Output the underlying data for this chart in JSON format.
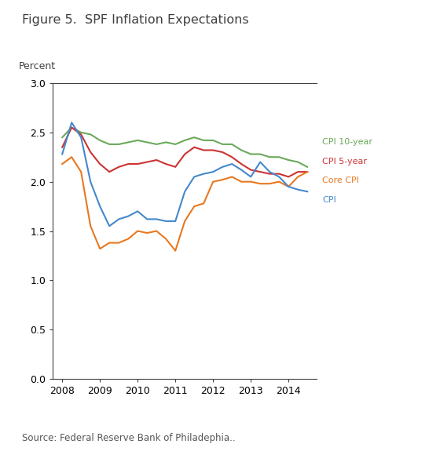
{
  "title": "Figure 5.  SPF Inflation Expectations",
  "ylabel": "Percent",
  "source_text": "Source: Federal Reserve Bank of Philadephia..",
  "xlim": [
    2007.75,
    2014.75
  ],
  "ylim": [
    0.0,
    3.0
  ],
  "yticks": [
    0.0,
    0.5,
    1.0,
    1.5,
    2.0,
    2.5,
    3.0
  ],
  "xticks": [
    2008,
    2009,
    2010,
    2011,
    2012,
    2013,
    2014
  ],
  "background_color": "#ffffff",
  "x": [
    2008.0,
    2008.25,
    2008.5,
    2008.75,
    2009.0,
    2009.25,
    2009.5,
    2009.75,
    2010.0,
    2010.25,
    2010.5,
    2010.75,
    2011.0,
    2011.25,
    2011.5,
    2011.75,
    2012.0,
    2012.25,
    2012.5,
    2012.75,
    2013.0,
    2013.25,
    2013.5,
    2013.75,
    2014.0,
    2014.25,
    2014.5
  ],
  "cpi_10year": [
    2.45,
    2.55,
    2.5,
    2.48,
    2.42,
    2.38,
    2.38,
    2.4,
    2.42,
    2.4,
    2.38,
    2.4,
    2.38,
    2.42,
    2.45,
    2.42,
    2.42,
    2.38,
    2.38,
    2.32,
    2.28,
    2.28,
    2.25,
    2.25,
    2.22,
    2.2,
    2.15
  ],
  "cpi_5year": [
    2.35,
    2.55,
    2.48,
    2.3,
    2.18,
    2.1,
    2.15,
    2.18,
    2.18,
    2.2,
    2.22,
    2.18,
    2.15,
    2.28,
    2.35,
    2.32,
    2.32,
    2.3,
    2.25,
    2.18,
    2.12,
    2.1,
    2.08,
    2.08,
    2.05,
    2.1,
    2.1
  ],
  "core_cpi": [
    2.18,
    2.25,
    2.1,
    1.55,
    1.32,
    1.38,
    1.38,
    1.42,
    1.5,
    1.48,
    1.5,
    1.42,
    1.3,
    1.6,
    1.75,
    1.78,
    2.0,
    2.02,
    2.05,
    2.0,
    2.0,
    1.98,
    1.98,
    2.0,
    1.95,
    2.05,
    2.1
  ],
  "cpi": [
    2.28,
    2.6,
    2.45,
    2.0,
    1.75,
    1.55,
    1.62,
    1.65,
    1.7,
    1.62,
    1.62,
    1.6,
    1.6,
    1.9,
    2.05,
    2.08,
    2.1,
    2.15,
    2.18,
    2.12,
    2.05,
    2.2,
    2.1,
    2.05,
    1.95,
    1.92,
    1.9
  ],
  "colors": {
    "cpi_10year": "#6aaa5a",
    "cpi_5year": "#cc3333",
    "core_cpi": "#e87820",
    "cpi": "#4488cc"
  },
  "legend": {
    "cpi_10year": "CPI 10-year",
    "cpi_5year": "CPI 5-year",
    "core_cpi": "Core CPI",
    "cpi": "CPI"
  },
  "title_color": "#404040",
  "axis_color": "#404040",
  "tick_color": "#404040"
}
